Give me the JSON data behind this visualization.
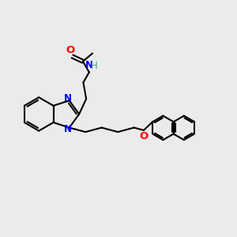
{
  "bg_color": "#ebebeb",
  "bond_color": "#000000",
  "bond_width": 1.5,
  "N_color": "#0000ff",
  "O_color": "#ff0000",
  "H_color": "#4d9999",
  "font_size": 8.5,
  "figsize": [
    3.0,
    3.0
  ],
  "dpi": 100,
  "xlim": [
    0,
    10
  ],
  "ylim": [
    0,
    10
  ]
}
